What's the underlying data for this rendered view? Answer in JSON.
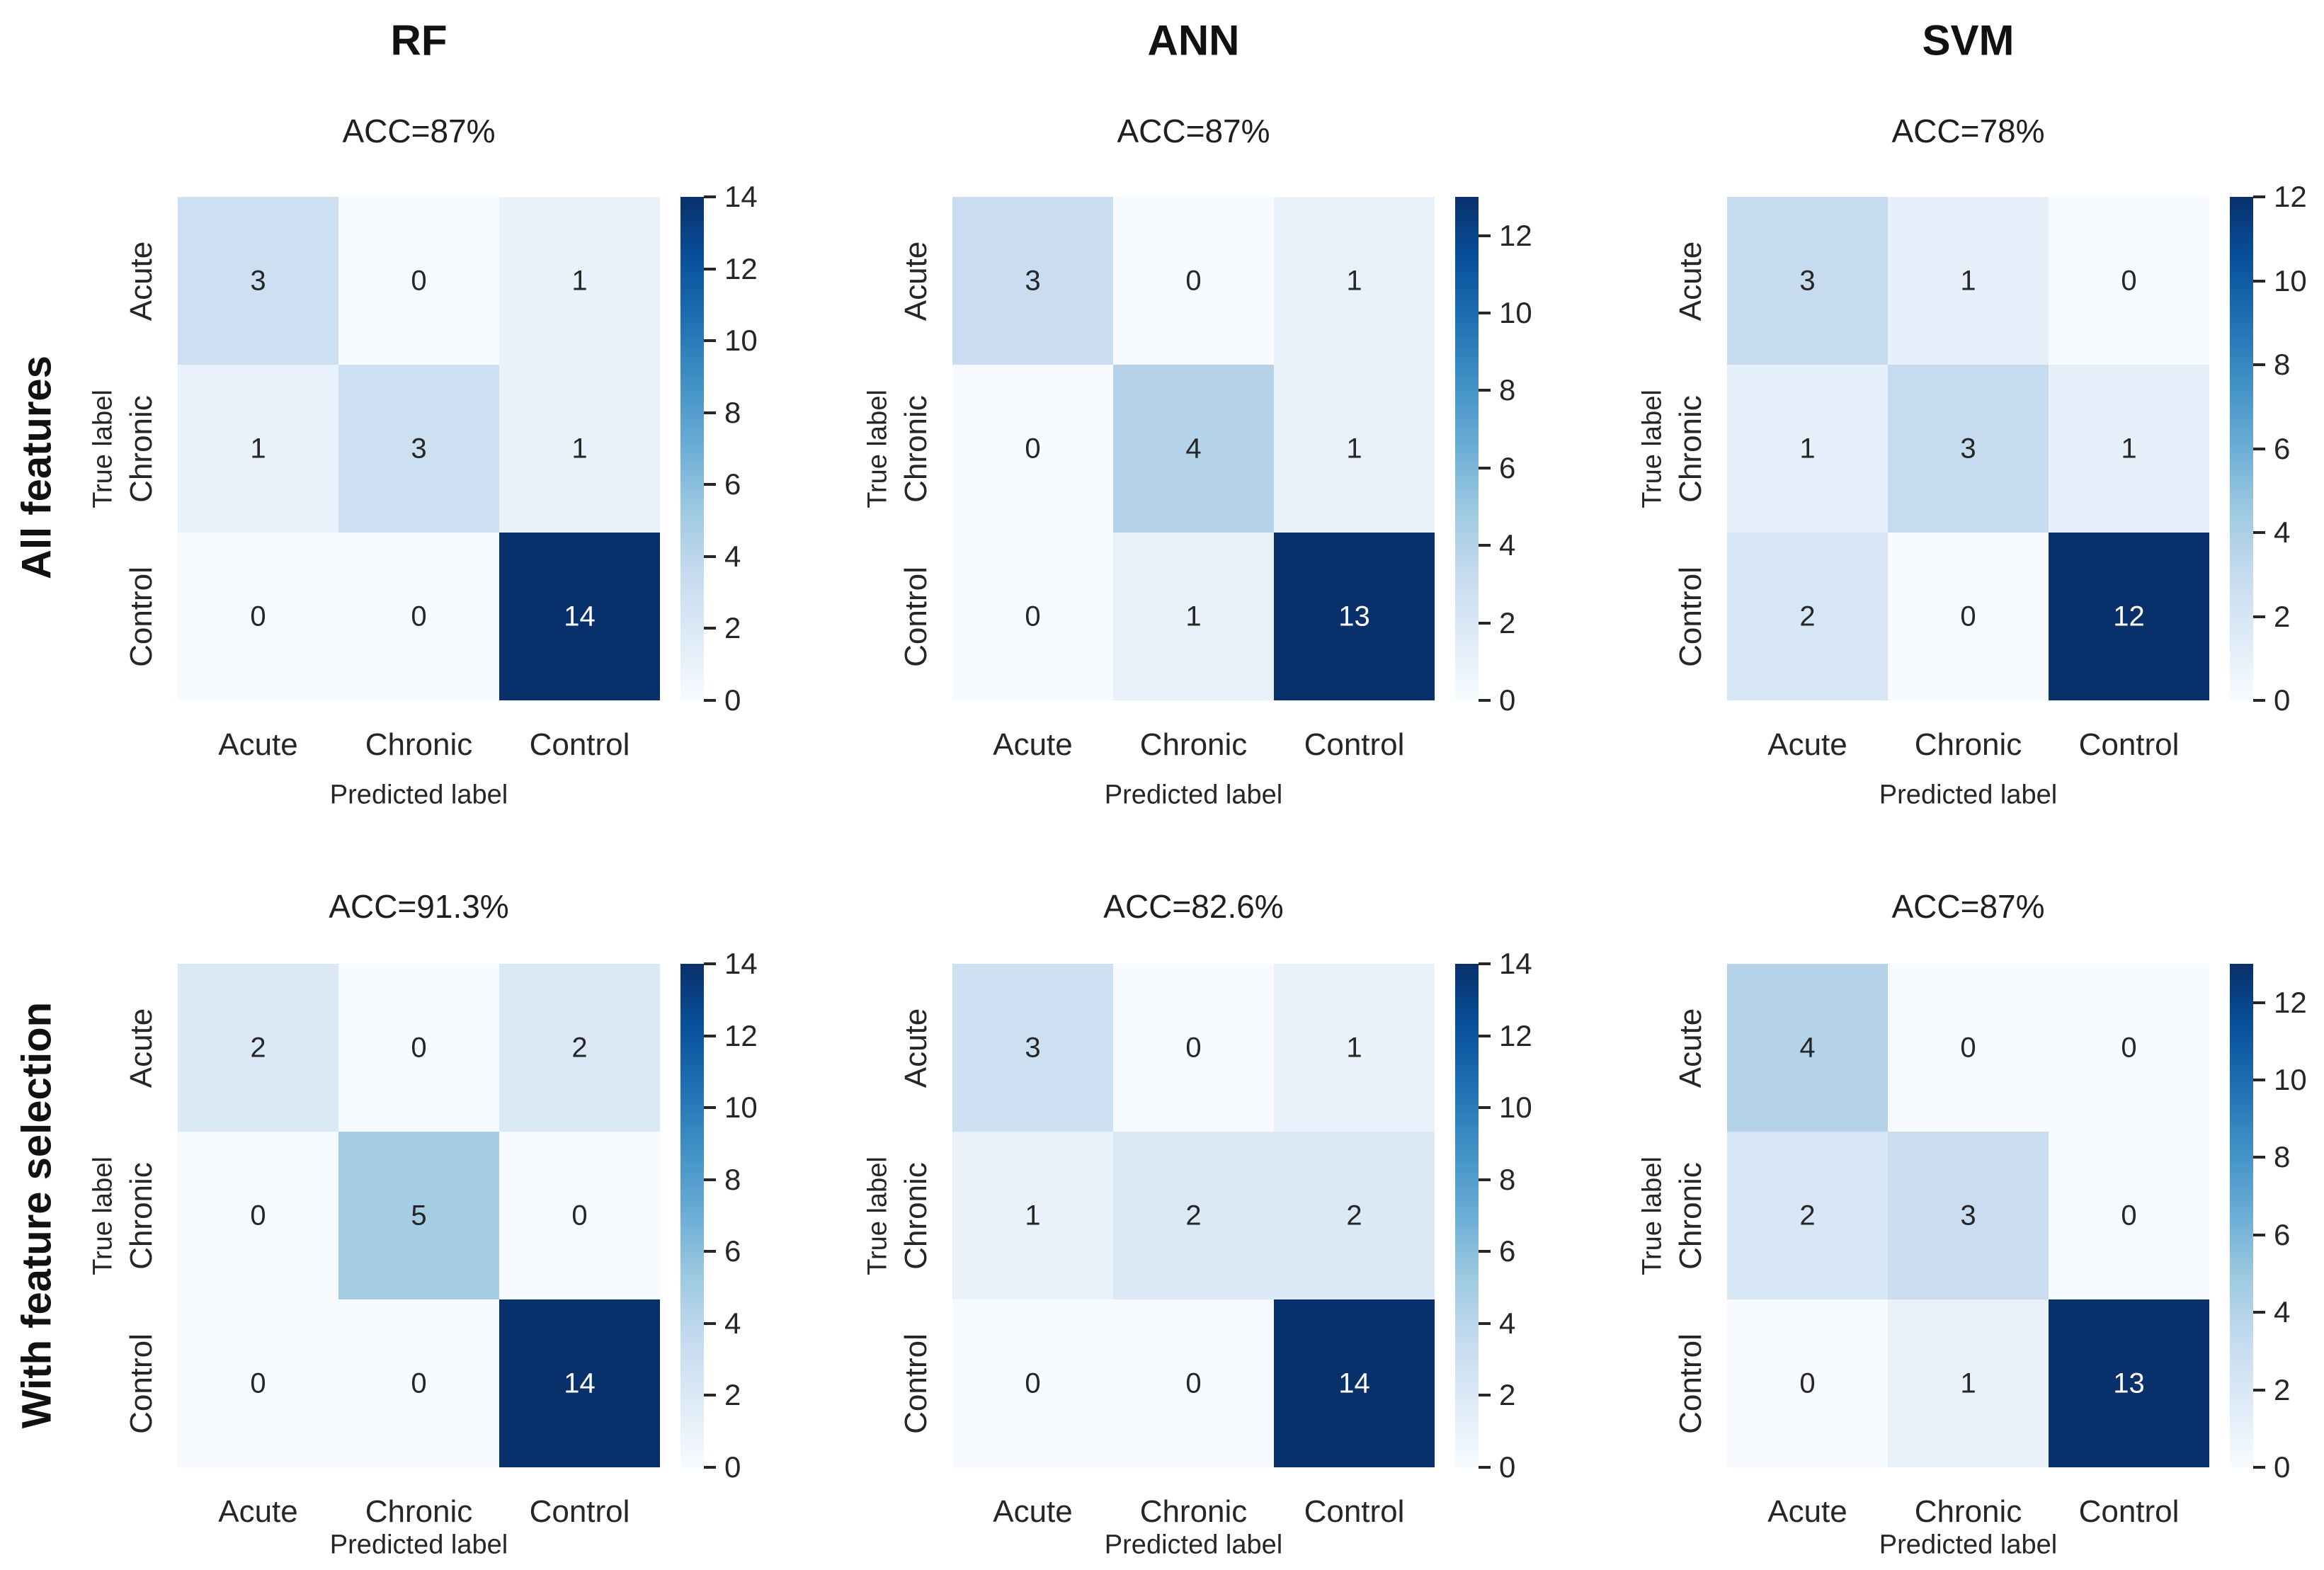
{
  "figure": {
    "column_titles": [
      "RF",
      "ANN",
      "SVM"
    ],
    "row_labels": [
      "All features",
      "With feature selection"
    ],
    "x_axis_title": "Predicted label",
    "y_axis_title": "True label",
    "categories": [
      "Acute",
      "Chronic",
      "Control"
    ],
    "colors": {
      "background": "#ffffff",
      "text": "#262626",
      "title_text": "#111111",
      "annotation_dark": "#262626",
      "annotation_light": "#ffffff",
      "colormap": "Blues",
      "colormap_stops": [
        "#f7fbff",
        "#deebf7",
        "#c6dbef",
        "#9ecae1",
        "#6baed6",
        "#4292c6",
        "#2171b5",
        "#08519c",
        "#08306b"
      ]
    }
  },
  "chart_data": [
    {
      "type": "heatmap",
      "model": "RF",
      "feature_set": "All features",
      "title": "RF",
      "subtitle": "ACC=87%",
      "xlabel": "Predicted label",
      "ylabel": "True label",
      "x_categories": [
        "Acute",
        "Chronic",
        "Control"
      ],
      "y_categories": [
        "Acute",
        "Chronic",
        "Control"
      ],
      "matrix": [
        [
          3,
          0,
          1
        ],
        [
          1,
          3,
          1
        ],
        [
          0,
          0,
          14
        ]
      ],
      "vmin": 0,
      "vmax": 14,
      "colorbar_ticks": [
        0,
        2,
        4,
        6,
        8,
        10,
        12,
        14
      ],
      "legend_position": "right-colorbar"
    },
    {
      "type": "heatmap",
      "model": "ANN",
      "feature_set": "All features",
      "title": "ANN",
      "subtitle": "ACC=87%",
      "xlabel": "Predicted label",
      "ylabel": "True label",
      "x_categories": [
        "Acute",
        "Chronic",
        "Control"
      ],
      "y_categories": [
        "Acute",
        "Chronic",
        "Control"
      ],
      "matrix": [
        [
          3,
          0,
          1
        ],
        [
          0,
          4,
          1
        ],
        [
          0,
          1,
          13
        ]
      ],
      "vmin": 0,
      "vmax": 13,
      "colorbar_ticks": [
        0,
        2,
        4,
        6,
        8,
        10,
        12
      ],
      "legend_position": "right-colorbar"
    },
    {
      "type": "heatmap",
      "model": "SVM",
      "feature_set": "All features",
      "title": "SVM",
      "subtitle": "ACC=78%",
      "xlabel": "Predicted label",
      "ylabel": "True label",
      "x_categories": [
        "Acute",
        "Chronic",
        "Control"
      ],
      "y_categories": [
        "Acute",
        "Chronic",
        "Control"
      ],
      "matrix": [
        [
          3,
          1,
          0
        ],
        [
          1,
          3,
          1
        ],
        [
          2,
          0,
          12
        ]
      ],
      "vmin": 0,
      "vmax": 12,
      "colorbar_ticks": [
        0,
        2,
        4,
        6,
        8,
        10,
        12
      ],
      "legend_position": "right-colorbar"
    },
    {
      "type": "heatmap",
      "model": "RF",
      "feature_set": "With feature selection",
      "title": "",
      "subtitle": "ACC=91.3%",
      "xlabel": "Predicted label",
      "ylabel": "True label",
      "x_categories": [
        "Acute",
        "Chronic",
        "Control"
      ],
      "y_categories": [
        "Acute",
        "Chronic",
        "Control"
      ],
      "matrix": [
        [
          2,
          0,
          2
        ],
        [
          0,
          5,
          0
        ],
        [
          0,
          0,
          14
        ]
      ],
      "vmin": 0,
      "vmax": 14,
      "colorbar_ticks": [
        0,
        2,
        4,
        6,
        8,
        10,
        12,
        14
      ],
      "legend_position": "right-colorbar"
    },
    {
      "type": "heatmap",
      "model": "ANN",
      "feature_set": "With feature selection",
      "title": "",
      "subtitle": "ACC=82.6%",
      "xlabel": "Predicted label",
      "ylabel": "True label",
      "x_categories": [
        "Acute",
        "Chronic",
        "Control"
      ],
      "y_categories": [
        "Acute",
        "Chronic",
        "Control"
      ],
      "matrix": [
        [
          3,
          0,
          1
        ],
        [
          1,
          2,
          2
        ],
        [
          0,
          0,
          14
        ]
      ],
      "vmin": 0,
      "vmax": 14,
      "colorbar_ticks": [
        0,
        2,
        4,
        6,
        8,
        10,
        12,
        14
      ],
      "legend_position": "right-colorbar"
    },
    {
      "type": "heatmap",
      "model": "SVM",
      "feature_set": "With feature selection",
      "title": "",
      "subtitle": "ACC=87%",
      "xlabel": "Predicted label",
      "ylabel": "True label",
      "x_categories": [
        "Acute",
        "Chronic",
        "Control"
      ],
      "y_categories": [
        "Acute",
        "Chronic",
        "Control"
      ],
      "matrix": [
        [
          4,
          0,
          0
        ],
        [
          2,
          3,
          0
        ],
        [
          0,
          1,
          13
        ]
      ],
      "vmin": 0,
      "vmax": 13,
      "colorbar_ticks": [
        0,
        2,
        4,
        6,
        8,
        10,
        12
      ],
      "legend_position": "right-colorbar"
    }
  ]
}
